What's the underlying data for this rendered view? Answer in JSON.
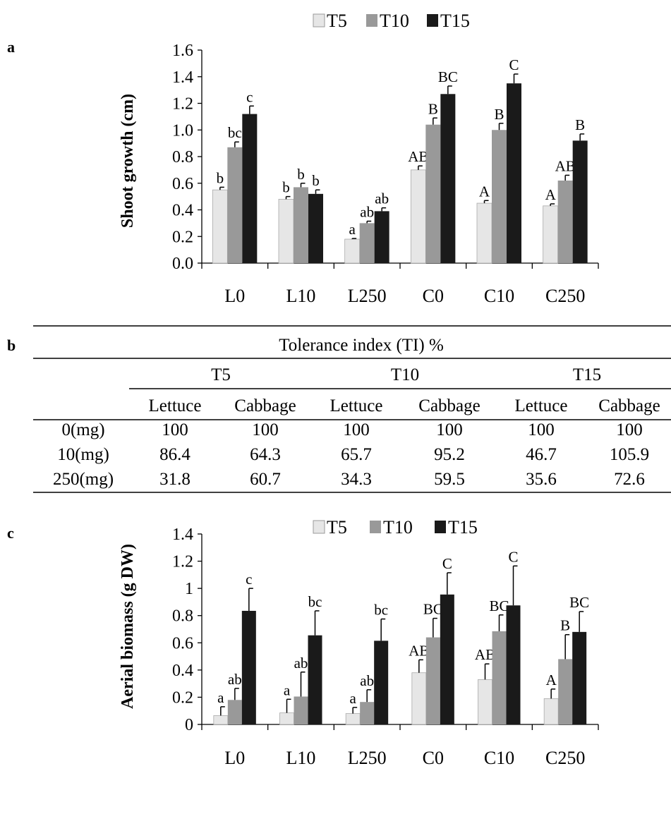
{
  "panels": {
    "a": "a",
    "b": "b",
    "c": "c"
  },
  "colors": {
    "T5": "#e6e6e6",
    "T10": "#999999",
    "T15": "#1a1a1a"
  },
  "chart_data": [
    {
      "type": "bar",
      "panel": "a",
      "ylabel": "Shoot growth (cm)",
      "ylim": [
        0,
        1.6
      ],
      "yticks": [
        "0.0",
        "0.2",
        "0.4",
        "0.6",
        "0.8",
        "1.0",
        "1.2",
        "1.4",
        "1.6"
      ],
      "categories": [
        "L0",
        "L10",
        "L250",
        "C0",
        "C10",
        "C250"
      ],
      "legend_position": "top",
      "series": [
        {
          "name": "T5",
          "values": [
            0.55,
            0.48,
            0.18,
            0.7,
            0.45,
            0.43
          ],
          "errors": [
            0.02,
            0.02,
            0.005,
            0.03,
            0.02,
            0.015
          ],
          "labels": [
            "b",
            "b",
            "a",
            "AB",
            "A",
            "A"
          ]
        },
        {
          "name": "T10",
          "values": [
            0.87,
            0.57,
            0.3,
            1.04,
            1.0,
            0.62
          ],
          "errors": [
            0.04,
            0.03,
            0.015,
            0.05,
            0.05,
            0.04
          ],
          "labels": [
            "bc",
            "b",
            "ab",
            "B",
            "B",
            "AB"
          ]
        },
        {
          "name": "T15",
          "values": [
            1.12,
            0.52,
            0.39,
            1.27,
            1.35,
            0.92
          ],
          "errors": [
            0.06,
            0.03,
            0.025,
            0.06,
            0.07,
            0.05
          ],
          "labels": [
            "c",
            "b",
            "ab",
            "BC",
            "C",
            "B"
          ]
        }
      ]
    },
    {
      "type": "table",
      "panel": "b",
      "title": "Tolerance index (TI) %",
      "groups": [
        "T5",
        "T10",
        "T15"
      ],
      "subheaders": [
        "Lettuce",
        "Cabbage",
        "Lettuce",
        "Cabbage",
        "Lettuce",
        "Cabbage"
      ],
      "rows": [
        {
          "label": "0(mg)",
          "values": [
            "100",
            "100",
            "100",
            "100",
            "100",
            "100"
          ]
        },
        {
          "label": "10(mg)",
          "values": [
            "86.4",
            "64.3",
            "65.7",
            "95.2",
            "46.7",
            "105.9"
          ]
        },
        {
          "label": "250(mg)",
          "values": [
            "31.8",
            "60.7",
            "34.3",
            "59.5",
            "35.6",
            "72.6"
          ]
        }
      ]
    },
    {
      "type": "bar",
      "panel": "c",
      "ylabel": "Aerial biomass (g DW)",
      "ylim": [
        0,
        1.4
      ],
      "yticks": [
        "0",
        "0.2",
        "0.4",
        "0.6",
        "0.8",
        "1",
        "1.2",
        "1.4"
      ],
      "categories": [
        "L0",
        "L10",
        "L250",
        "C0",
        "C10",
        "C250"
      ],
      "legend_position": "top",
      "series": [
        {
          "name": "T5",
          "values": [
            0.065,
            0.085,
            0.08,
            0.38,
            0.33,
            0.19
          ],
          "errors": [
            0.065,
            0.1,
            0.045,
            0.095,
            0.115,
            0.07
          ],
          "labels": [
            "a",
            "a",
            "a",
            "AB",
            "AB",
            "A"
          ]
        },
        {
          "name": "T10",
          "values": [
            0.18,
            0.205,
            0.165,
            0.64,
            0.685,
            0.48
          ],
          "errors": [
            0.085,
            0.18,
            0.09,
            0.14,
            0.12,
            0.18
          ],
          "labels": [
            "ab",
            "ab",
            "ab",
            "BC",
            "BC",
            "B"
          ]
        },
        {
          "name": "T15",
          "values": [
            0.835,
            0.655,
            0.615,
            0.955,
            0.875,
            0.68
          ],
          "errors": [
            0.165,
            0.18,
            0.16,
            0.16,
            0.29,
            0.15
          ],
          "labels": [
            "c",
            "bc",
            "bc",
            "C",
            "C",
            "BC"
          ]
        }
      ]
    }
  ]
}
